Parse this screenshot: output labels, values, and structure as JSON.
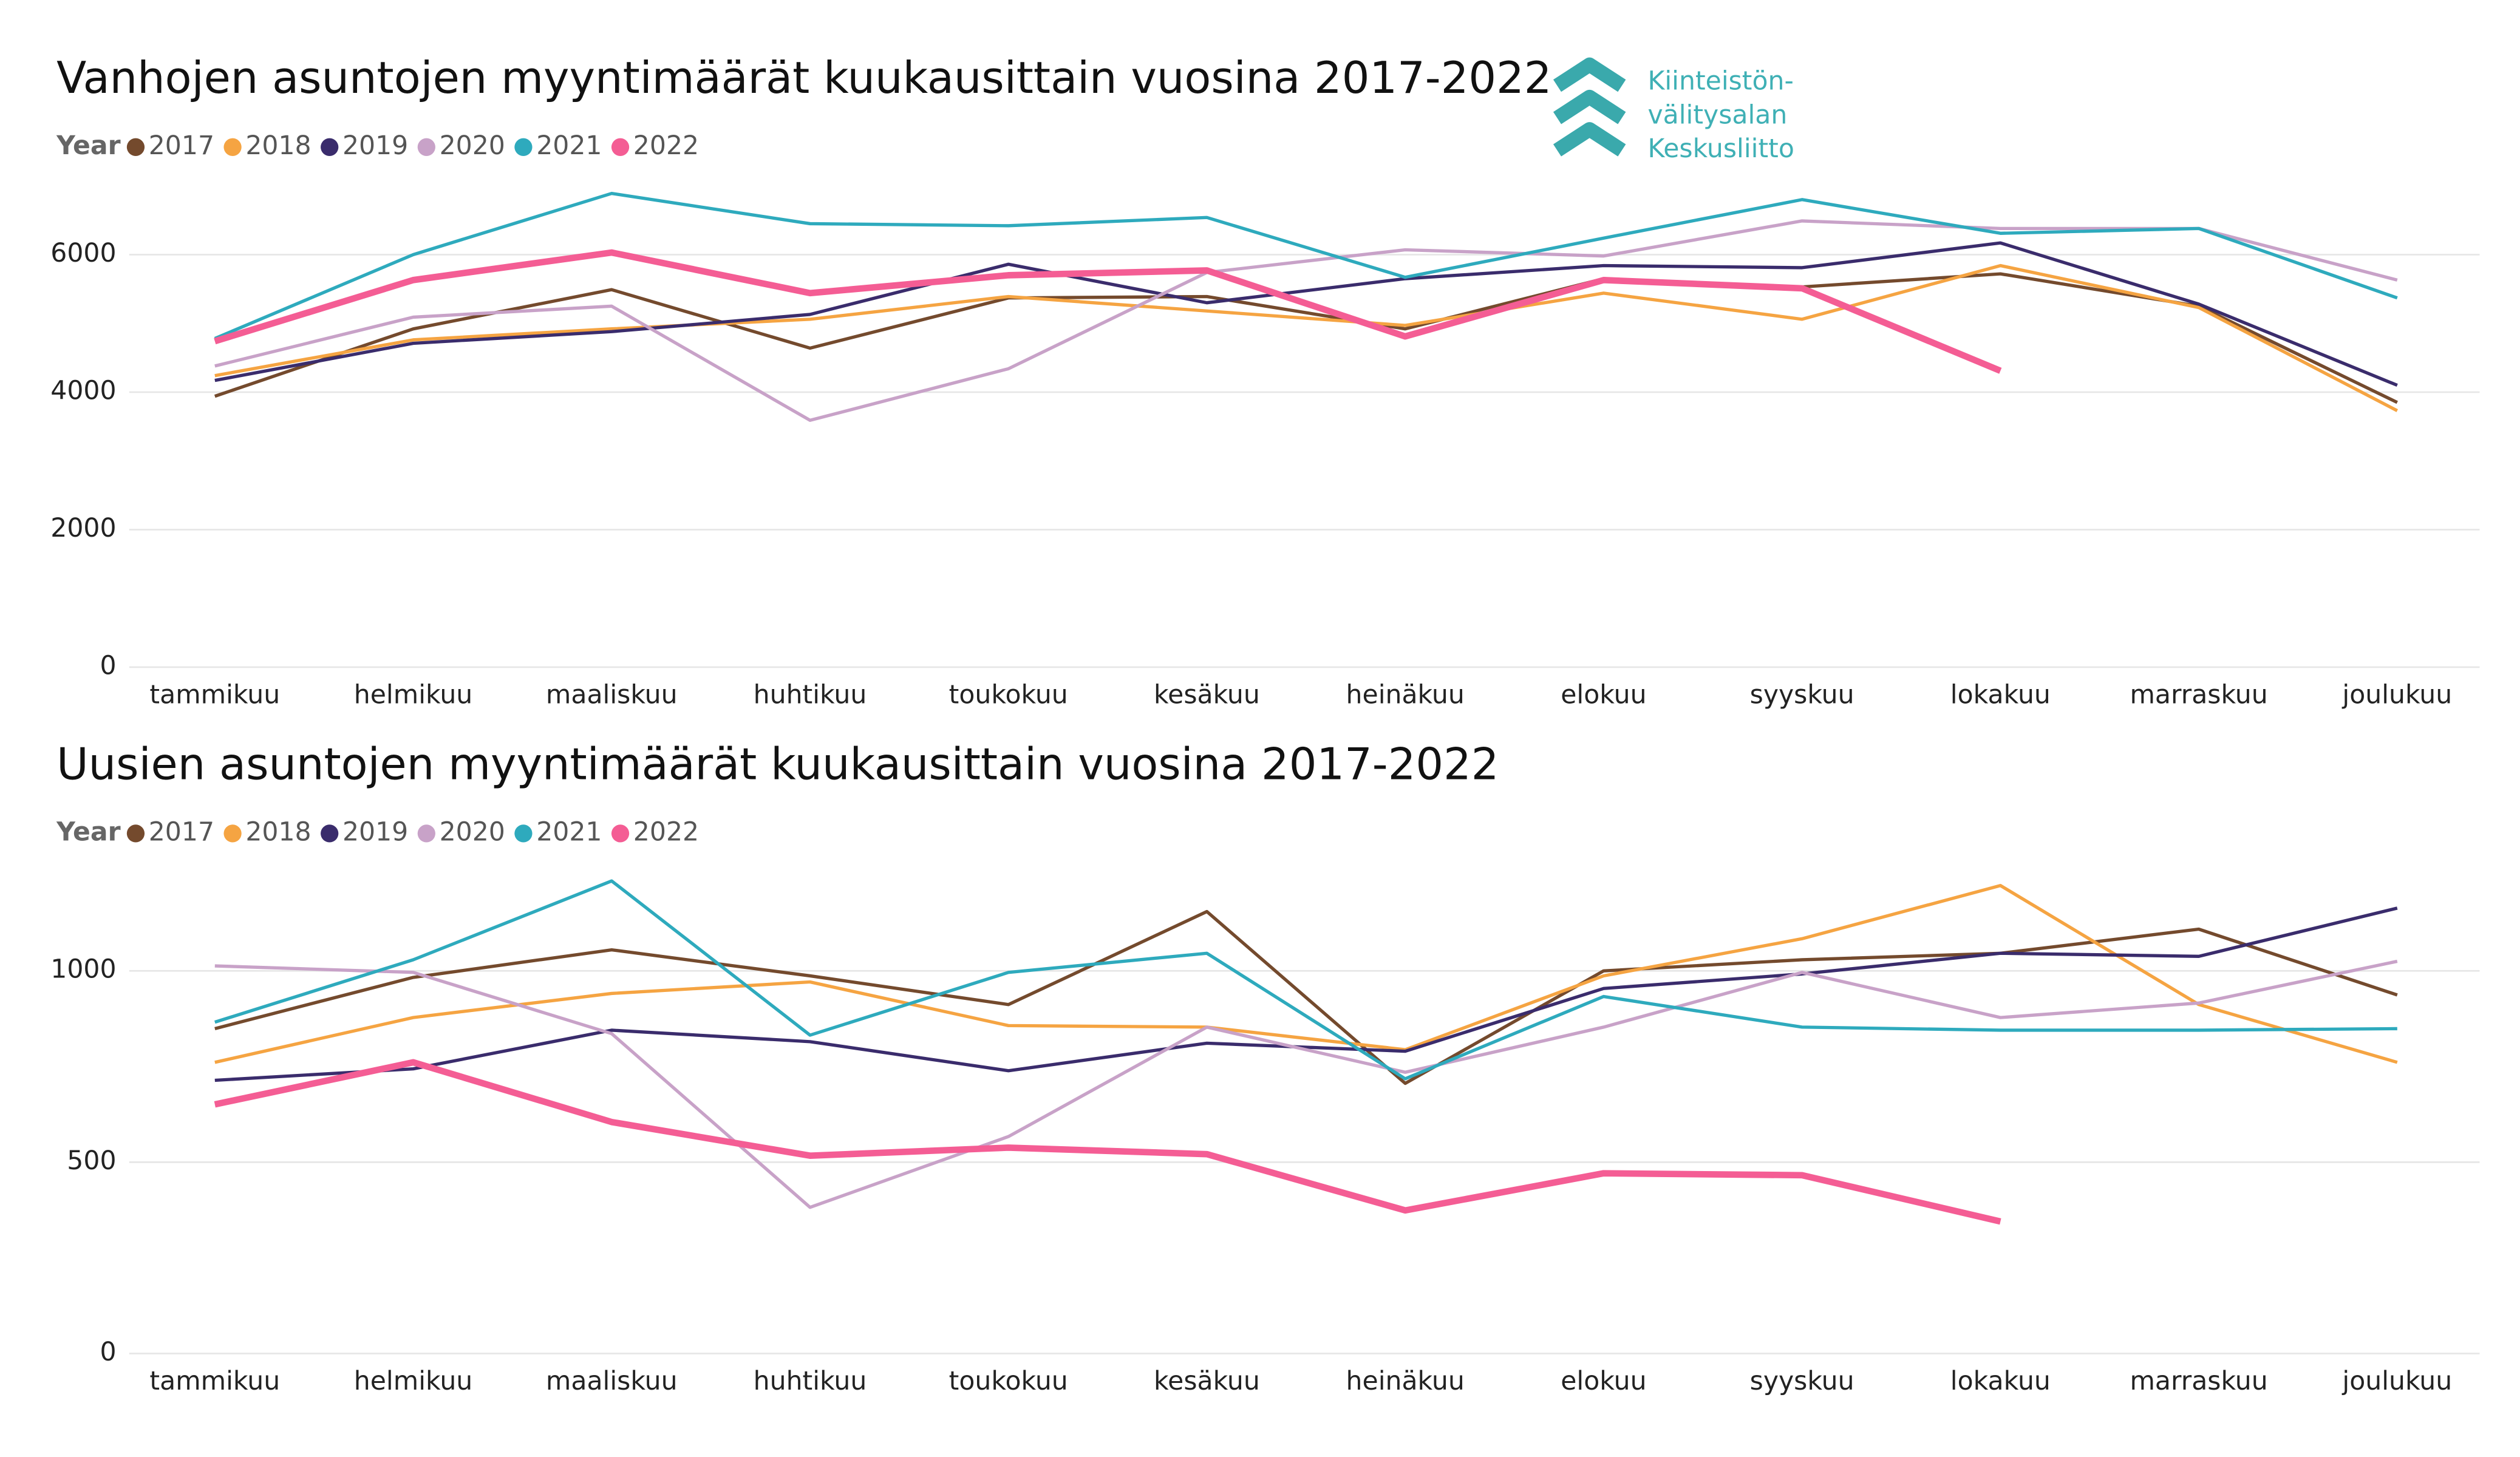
{
  "logo": {
    "lines": [
      "Kiinteistön-",
      "välitysalan",
      "Keskusliitto"
    ]
  },
  "chart_data": [
    {
      "type": "line",
      "title": "Vanhojen asuntojen myyntimäärät kuukausittain vuosina 2017-2022",
      "legend_title": "Year",
      "categories": [
        "tammikuu",
        "helmikuu",
        "maaliskuu",
        "huhtikuu",
        "toukokuu",
        "kesäkuu",
        "heinäkuu",
        "elokuu",
        "syyskuu",
        "lokakuu",
        "marraskuu",
        "joulukuu"
      ],
      "ylim": [
        0,
        7000
      ],
      "yticks": [
        0,
        2000,
        4000,
        6000
      ],
      "grid": true,
      "series": [
        {
          "name": "2017",
          "color": "#744a2d",
          "values": [
            3940,
            4920,
            5490,
            4640,
            5370,
            5390,
            4920,
            5650,
            5530,
            5720,
            5250,
            3850
          ]
        },
        {
          "name": "2018",
          "color": "#f5a442",
          "values": [
            4240,
            4760,
            4920,
            5060,
            5390,
            5180,
            4970,
            5440,
            5060,
            5840,
            5230,
            3730
          ]
        },
        {
          "name": "2019",
          "color": "#3a2c6c",
          "values": [
            4170,
            4710,
            4880,
            5130,
            5860,
            5300,
            5650,
            5840,
            5810,
            6170,
            5280,
            4100
          ]
        },
        {
          "name": "2020",
          "color": "#c8a2c8",
          "values": [
            4380,
            5090,
            5250,
            3590,
            4340,
            5740,
            6070,
            5980,
            6490,
            6380,
            6380,
            5630
          ]
        },
        {
          "name": "2021",
          "color": "#2eaabd",
          "values": [
            4780,
            6000,
            6890,
            6450,
            6420,
            6540,
            5670,
            6240,
            6800,
            6310,
            6380,
            5370
          ]
        },
        {
          "name": "2022",
          "color": "#f45d94",
          "values": [
            4740,
            5630,
            6030,
            5440,
            5700,
            5770,
            4810,
            5630,
            5510,
            4310,
            null,
            null
          ]
        }
      ]
    },
    {
      "type": "line",
      "title": "Uusien asuntojen myyntimäärät kuukausittain vuosina 2017-2022",
      "legend_title": "Year",
      "categories": [
        "tammikuu",
        "helmikuu",
        "maaliskuu",
        "huhtikuu",
        "toukokuu",
        "kesäkuu",
        "heinäkuu",
        "elokuu",
        "syyskuu",
        "lokakuu",
        "marraskuu",
        "joulukuu"
      ],
      "ylim": [
        0,
        1300
      ],
      "yticks": [
        0,
        500,
        1000
      ],
      "grid": true,
      "series": [
        {
          "name": "2017",
          "color": "#744a2d",
          "values": [
            849,
            983,
            1055,
            987,
            912,
            1155,
            706,
            1000,
            1029,
            1046,
            1109,
            937
          ]
        },
        {
          "name": "2018",
          "color": "#f5a442",
          "values": [
            761,
            878,
            941,
            971,
            857,
            853,
            794,
            987,
            1084,
            1223,
            912,
            761
          ]
        },
        {
          "name": "2019",
          "color": "#3a2c6c",
          "values": [
            714,
            744,
            845,
            815,
            739,
            811,
            790,
            954,
            992,
            1046,
            1038,
            1164
          ]
        },
        {
          "name": "2020",
          "color": "#c8a2c8",
          "values": [
            1013,
            996,
            836,
            382,
            567,
            853,
            735,
            853,
            996,
            878,
            916,
            1025
          ]
        },
        {
          "name": "2021",
          "color": "#2eaabd",
          "values": [
            866,
            1029,
            1235,
            832,
            996,
            1046,
            718,
            933,
            853,
            845,
            845,
            849
          ]
        },
        {
          "name": "2022",
          "color": "#f45d94",
          "values": [
            651,
            761,
            605,
            517,
            538,
            521,
            374,
            471,
            466,
            345,
            null,
            null
          ]
        }
      ]
    }
  ]
}
